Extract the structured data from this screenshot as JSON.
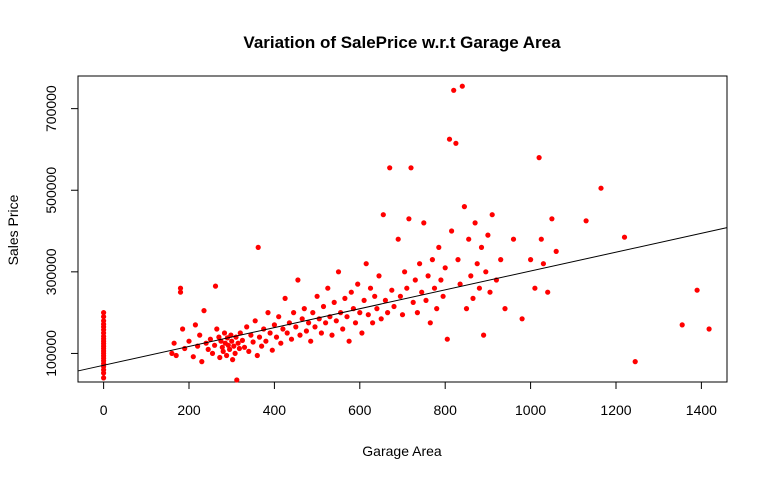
{
  "chart_data": {
    "type": "scatter",
    "title": "Variation of SalePrice w.r.t Garage Area",
    "xlabel": "Garage Area",
    "ylabel": "Sales Price",
    "xlim": [
      -60,
      1460
    ],
    "ylim": [
      30000,
      780000
    ],
    "xticks": [
      0,
      200,
      400,
      600,
      800,
      1000,
      1200,
      1400
    ],
    "yticks": [
      100000,
      300000,
      500000,
      700000
    ],
    "xtick_labels": [
      "0",
      "200",
      "400",
      "600",
      "800",
      "1000",
      "1200",
      "1400"
    ],
    "ytick_labels": [
      "100000",
      "300000",
      "500000",
      "700000"
    ],
    "grid": false,
    "legend": "none",
    "point_color": "#ff0000",
    "line_color": "#000000",
    "fit_line": {
      "intercept": 71000,
      "slope": 231
    },
    "points": [
      [
        0,
        40000
      ],
      [
        0,
        52000
      ],
      [
        0,
        60000
      ],
      [
        0,
        68000
      ],
      [
        0,
        75000
      ],
      [
        0,
        82000
      ],
      [
        0,
        88000
      ],
      [
        0,
        94000
      ],
      [
        0,
        100000
      ],
      [
        0,
        106000
      ],
      [
        0,
        112000
      ],
      [
        0,
        118000
      ],
      [
        0,
        124000
      ],
      [
        0,
        130000
      ],
      [
        0,
        136000
      ],
      [
        0,
        142000
      ],
      [
        0,
        150000
      ],
      [
        0,
        158000
      ],
      [
        0,
        165000
      ],
      [
        0,
        172000
      ],
      [
        0,
        180000
      ],
      [
        0,
        190000
      ],
      [
        0,
        200000
      ],
      [
        160,
        100000
      ],
      [
        165,
        125000
      ],
      [
        170,
        95000
      ],
      [
        180,
        260000
      ],
      [
        180,
        250000
      ],
      [
        185,
        160000
      ],
      [
        190,
        112000
      ],
      [
        200,
        130000
      ],
      [
        210,
        92000
      ],
      [
        215,
        170000
      ],
      [
        220,
        118000
      ],
      [
        225,
        145000
      ],
      [
        230,
        80000
      ],
      [
        235,
        205000
      ],
      [
        240,
        125000
      ],
      [
        245,
        110000
      ],
      [
        250,
        135000
      ],
      [
        255,
        100000
      ],
      [
        260,
        120000
      ],
      [
        262,
        265000
      ],
      [
        265,
        160000
      ],
      [
        270,
        140000
      ],
      [
        272,
        90000
      ],
      [
        275,
        130000
      ],
      [
        278,
        115000
      ],
      [
        280,
        105000
      ],
      [
        283,
        150000
      ],
      [
        285,
        125000
      ],
      [
        288,
        95000
      ],
      [
        290,
        138000
      ],
      [
        292,
        120000
      ],
      [
        295,
        110000
      ],
      [
        298,
        145000
      ],
      [
        300,
        130000
      ],
      [
        302,
        85000
      ],
      [
        305,
        118000
      ],
      [
        308,
        100000
      ],
      [
        310,
        140000
      ],
      [
        312,
        35000
      ],
      [
        315,
        125000
      ],
      [
        318,
        112000
      ],
      [
        320,
        150000
      ],
      [
        325,
        132000
      ],
      [
        330,
        115000
      ],
      [
        335,
        165000
      ],
      [
        340,
        105000
      ],
      [
        345,
        145000
      ],
      [
        350,
        128000
      ],
      [
        355,
        180000
      ],
      [
        360,
        95000
      ],
      [
        362,
        360000
      ],
      [
        365,
        140000
      ],
      [
        370,
        118000
      ],
      [
        375,
        160000
      ],
      [
        380,
        130000
      ],
      [
        385,
        200000
      ],
      [
        390,
        150000
      ],
      [
        395,
        108000
      ],
      [
        400,
        170000
      ],
      [
        405,
        140000
      ],
      [
        410,
        190000
      ],
      [
        415,
        125000
      ],
      [
        420,
        160000
      ],
      [
        425,
        235000
      ],
      [
        430,
        150000
      ],
      [
        435,
        175000
      ],
      [
        440,
        135000
      ],
      [
        445,
        200000
      ],
      [
        450,
        165000
      ],
      [
        455,
        280000
      ],
      [
        460,
        145000
      ],
      [
        465,
        185000
      ],
      [
        470,
        210000
      ],
      [
        475,
        155000
      ],
      [
        480,
        175000
      ],
      [
        485,
        130000
      ],
      [
        490,
        200000
      ],
      [
        495,
        165000
      ],
      [
        500,
        240000
      ],
      [
        505,
        185000
      ],
      [
        510,
        150000
      ],
      [
        515,
        215000
      ],
      [
        520,
        175000
      ],
      [
        525,
        260000
      ],
      [
        530,
        190000
      ],
      [
        535,
        145000
      ],
      [
        540,
        225000
      ],
      [
        545,
        180000
      ],
      [
        550,
        300000
      ],
      [
        555,
        200000
      ],
      [
        560,
        160000
      ],
      [
        565,
        235000
      ],
      [
        570,
        190000
      ],
      [
        575,
        130000
      ],
      [
        580,
        250000
      ],
      [
        585,
        210000
      ],
      [
        590,
        175000
      ],
      [
        595,
        270000
      ],
      [
        600,
        200000
      ],
      [
        605,
        150000
      ],
      [
        610,
        230000
      ],
      [
        615,
        320000
      ],
      [
        620,
        195000
      ],
      [
        625,
        260000
      ],
      [
        630,
        175000
      ],
      [
        635,
        240000
      ],
      [
        640,
        210000
      ],
      [
        645,
        290000
      ],
      [
        650,
        185000
      ],
      [
        655,
        440000
      ],
      [
        660,
        230000
      ],
      [
        665,
        200000
      ],
      [
        670,
        555000
      ],
      [
        675,
        255000
      ],
      [
        680,
        215000
      ],
      [
        690,
        380000
      ],
      [
        695,
        240000
      ],
      [
        700,
        195000
      ],
      [
        705,
        300000
      ],
      [
        710,
        260000
      ],
      [
        715,
        430000
      ],
      [
        720,
        555000
      ],
      [
        725,
        225000
      ],
      [
        730,
        280000
      ],
      [
        735,
        200000
      ],
      [
        740,
        320000
      ],
      [
        745,
        250000
      ],
      [
        750,
        420000
      ],
      [
        755,
        230000
      ],
      [
        760,
        290000
      ],
      [
        765,
        175000
      ],
      [
        770,
        330000
      ],
      [
        775,
        260000
      ],
      [
        780,
        210000
      ],
      [
        785,
        360000
      ],
      [
        790,
        280000
      ],
      [
        795,
        240000
      ],
      [
        800,
        310000
      ],
      [
        805,
        135000
      ],
      [
        810,
        625000
      ],
      [
        815,
        400000
      ],
      [
        820,
        745000
      ],
      [
        825,
        615000
      ],
      [
        830,
        330000
      ],
      [
        835,
        270000
      ],
      [
        840,
        755000
      ],
      [
        845,
        460000
      ],
      [
        850,
        210000
      ],
      [
        855,
        380000
      ],
      [
        860,
        290000
      ],
      [
        865,
        235000
      ],
      [
        870,
        420000
      ],
      [
        875,
        320000
      ],
      [
        880,
        260000
      ],
      [
        885,
        360000
      ],
      [
        890,
        145000
      ],
      [
        895,
        300000
      ],
      [
        900,
        390000
      ],
      [
        905,
        250000
      ],
      [
        910,
        440000
      ],
      [
        920,
        280000
      ],
      [
        930,
        330000
      ],
      [
        940,
        210000
      ],
      [
        960,
        380000
      ],
      [
        980,
        185000
      ],
      [
        1000,
        330000
      ],
      [
        1010,
        260000
      ],
      [
        1020,
        580000
      ],
      [
        1025,
        380000
      ],
      [
        1030,
        320000
      ],
      [
        1040,
        250000
      ],
      [
        1050,
        430000
      ],
      [
        1060,
        350000
      ],
      [
        1130,
        425000
      ],
      [
        1165,
        505000
      ],
      [
        1220,
        385000
      ],
      [
        1245,
        80000
      ],
      [
        1355,
        170000
      ],
      [
        1390,
        255000
      ],
      [
        1418,
        160000
      ]
    ]
  }
}
